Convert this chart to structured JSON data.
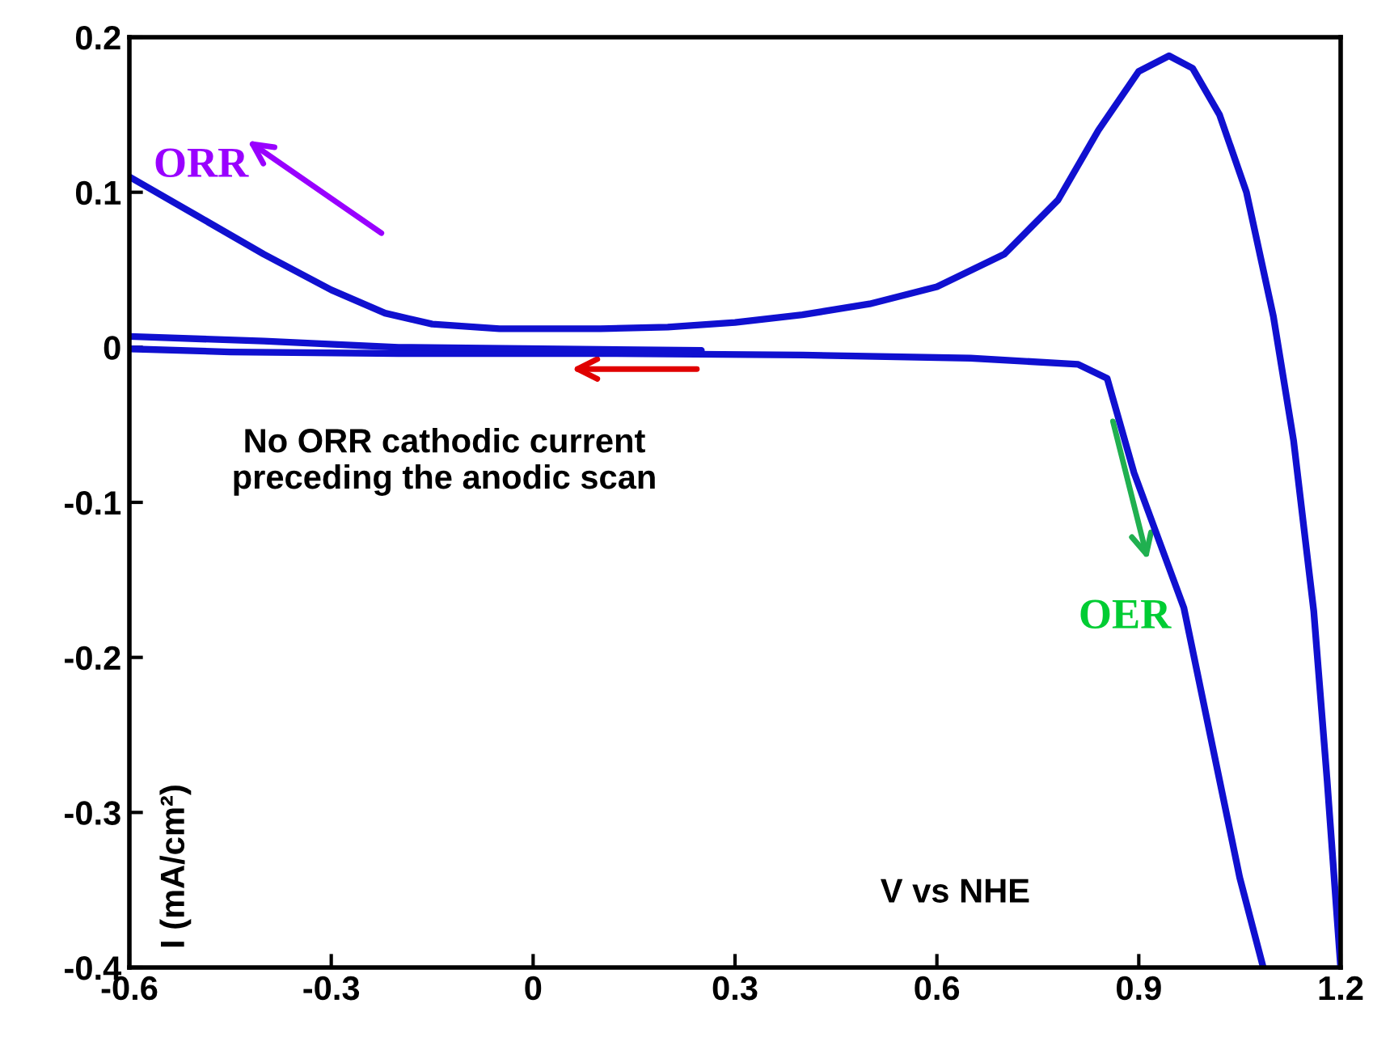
{
  "chart_data": {
    "type": "line",
    "xlabel": "V vs NHE",
    "ylabel": "I (mA/cm²)",
    "xlim": [
      -0.6,
      1.2
    ],
    "xticks": [
      -0.6,
      -0.3,
      0,
      0.3,
      0.6,
      0.9,
      1.2
    ],
    "ylim": [
      -0.4,
      0.2
    ],
    "yticks": [
      -0.4,
      -0.3,
      -0.2,
      -0.1,
      0,
      0.1,
      0.2
    ],
    "grid": false,
    "legend": false,
    "marker": "none",
    "line_style": "solid",
    "series": [
      {
        "color": "#1010d0",
        "x": [
          -0.6,
          -0.5,
          -0.4,
          -0.3,
          -0.22,
          -0.15,
          -0.05,
          0.1,
          0.2,
          0.3,
          0.4,
          0.5,
          0.6,
          0.7,
          0.78,
          0.84,
          0.9,
          0.945,
          0.98,
          1.02,
          1.06,
          1.1,
          1.13,
          1.16,
          1.18,
          1.2
        ],
        "values": [
          0.11,
          0.085,
          0.06,
          0.037,
          0.022,
          0.015,
          0.012,
          0.012,
          0.013,
          0.016,
          0.021,
          0.028,
          0.039,
          0.06,
          0.095,
          0.14,
          0.178,
          0.188,
          0.18,
          0.15,
          0.1,
          0.02,
          -0.06,
          -0.17,
          -0.28,
          -0.4
        ]
      },
      {
        "color": "#1010d0",
        "x": [
          1.085,
          1.05,
          0.967,
          0.893,
          0.853,
          0.81,
          0.65,
          0.4,
          0.1,
          -0.2,
          -0.45,
          -0.6
        ],
        "values": [
          -0.4,
          -0.342,
          -0.168,
          -0.081,
          -0.02,
          -0.011,
          -0.007,
          -0.005,
          -0.004,
          -0.004,
          -0.003,
          -0.001
        ]
      },
      {
        "color": "#1010d0",
        "x": [
          -0.6,
          -0.4,
          -0.2,
          0.25
        ],
        "values": [
          0.007,
          0.004,
          0.0,
          -0.002
        ]
      }
    ],
    "annotations": [
      "ORR",
      "No ORR cathodic current preceding the anodic scan",
      {
        "text": "OER",
        "x": 0.893,
        "y": -0.081
      }
    ]
  }
}
